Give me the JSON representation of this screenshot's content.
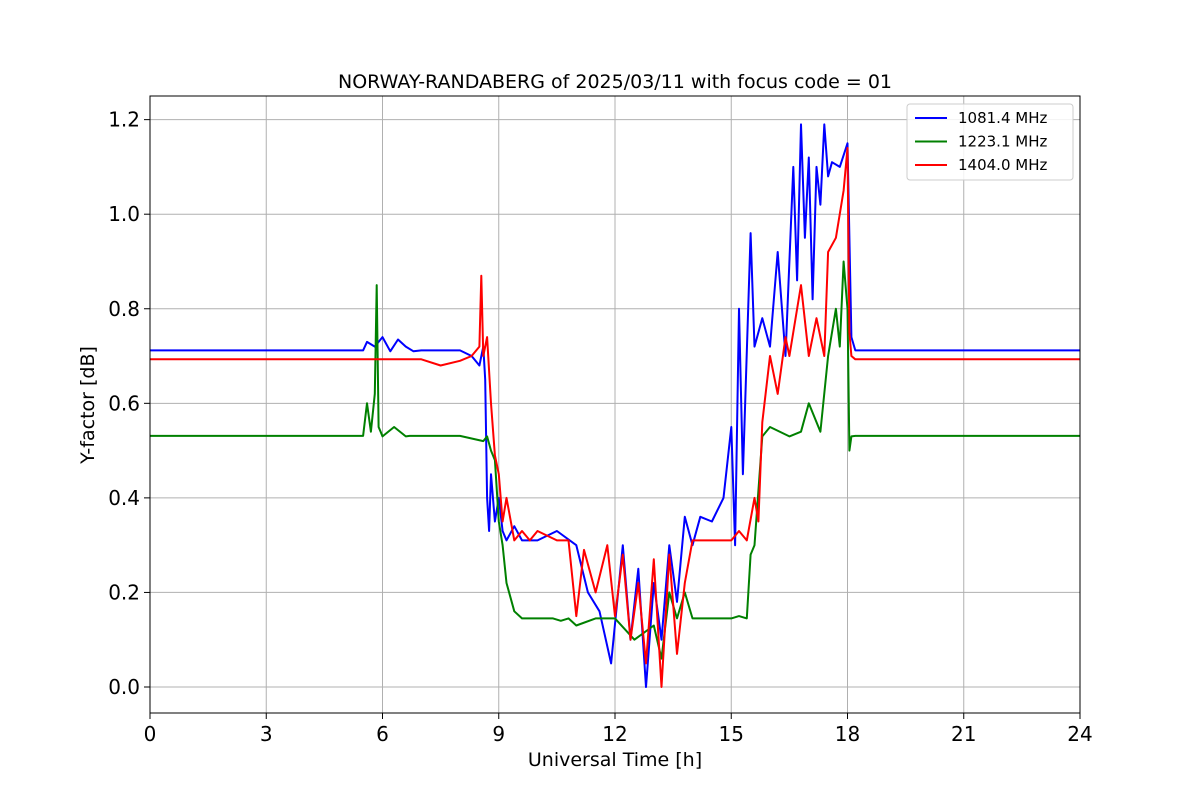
{
  "chart_data": {
    "type": "line",
    "title": "NORWAY-RANDABERG of 2025/03/11 with focus code = 01",
    "xlabel": "Universal Time [h]",
    "ylabel": "Y-factor [dB]",
    "xlim": [
      0,
      24
    ],
    "ylim": [
      -0.055,
      1.25
    ],
    "xticks": [
      0,
      3,
      6,
      9,
      12,
      15,
      18,
      21,
      24
    ],
    "yticks": [
      0.0,
      0.2,
      0.4,
      0.6,
      0.8,
      1.0,
      1.2
    ],
    "ytick_labels": [
      "0.0",
      "0.2",
      "0.4",
      "0.6",
      "0.8",
      "1.0",
      "1.2"
    ],
    "grid": true,
    "legend_position": "top-right",
    "series": [
      {
        "name": "1081.4 MHz",
        "color": "#0000ff",
        "x": [
          0,
          5.5,
          5.6,
          5.8,
          6.0,
          6.2,
          6.4,
          6.6,
          6.8,
          7.0,
          8.0,
          8.3,
          8.5,
          8.6,
          8.65,
          8.7,
          8.75,
          8.8,
          8.9,
          9.0,
          9.1,
          9.2,
          9.4,
          9.6,
          10.0,
          10.5,
          11.0,
          11.3,
          11.6,
          11.9,
          12.2,
          12.4,
          12.6,
          12.8,
          13.0,
          13.2,
          13.4,
          13.6,
          13.8,
          14.0,
          14.2,
          14.5,
          14.8,
          15.0,
          15.1,
          15.2,
          15.3,
          15.5,
          15.6,
          15.8,
          16.0,
          16.2,
          16.4,
          16.6,
          16.7,
          16.8,
          16.9,
          17.0,
          17.1,
          17.2,
          17.3,
          17.4,
          17.5,
          17.6,
          17.8,
          18.0,
          18.1,
          18.2,
          20.0,
          24
        ],
        "values": [
          0.712,
          0.712,
          0.73,
          0.72,
          0.74,
          0.71,
          0.735,
          0.72,
          0.71,
          0.712,
          0.712,
          0.7,
          0.68,
          0.72,
          0.65,
          0.4,
          0.33,
          0.45,
          0.35,
          0.4,
          0.33,
          0.31,
          0.34,
          0.31,
          0.31,
          0.33,
          0.3,
          0.2,
          0.16,
          0.05,
          0.3,
          0.1,
          0.25,
          0.0,
          0.22,
          0.1,
          0.3,
          0.18,
          0.36,
          0.3,
          0.36,
          0.35,
          0.4,
          0.55,
          0.3,
          0.8,
          0.45,
          0.96,
          0.72,
          0.78,
          0.72,
          0.92,
          0.7,
          1.1,
          0.86,
          1.19,
          0.95,
          1.12,
          0.82,
          1.1,
          1.02,
          1.19,
          1.08,
          1.11,
          1.1,
          1.15,
          0.74,
          0.712,
          0.712,
          0.712
        ]
      },
      {
        "name": "1223.1 MHz",
        "color": "#008000",
        "x": [
          0,
          5.5,
          5.6,
          5.7,
          5.8,
          5.85,
          5.9,
          5.95,
          6.0,
          6.3,
          6.6,
          6.7,
          8.0,
          8.6,
          8.7,
          8.8,
          8.9,
          9.0,
          9.1,
          9.2,
          9.4,
          9.6,
          9.8,
          10.0,
          10.4,
          10.6,
          10.8,
          11.0,
          11.5,
          12.0,
          12.5,
          13.0,
          13.2,
          13.4,
          13.6,
          13.8,
          14.0,
          14.2,
          14.5,
          15.0,
          15.2,
          15.4,
          15.5,
          15.6,
          15.8,
          16.0,
          16.5,
          16.8,
          17.0,
          17.3,
          17.5,
          17.7,
          17.8,
          17.9,
          18.0,
          18.05,
          18.1,
          18.2,
          20.0,
          24
        ],
        "values": [
          0.531,
          0.531,
          0.6,
          0.54,
          0.62,
          0.85,
          0.55,
          0.54,
          0.53,
          0.55,
          0.53,
          0.531,
          0.531,
          0.52,
          0.53,
          0.5,
          0.48,
          0.35,
          0.3,
          0.22,
          0.16,
          0.145,
          0.145,
          0.145,
          0.145,
          0.14,
          0.145,
          0.13,
          0.145,
          0.145,
          0.1,
          0.13,
          0.06,
          0.2,
          0.145,
          0.2,
          0.145,
          0.145,
          0.145,
          0.145,
          0.15,
          0.145,
          0.28,
          0.3,
          0.53,
          0.55,
          0.53,
          0.54,
          0.6,
          0.54,
          0.7,
          0.8,
          0.72,
          0.9,
          0.8,
          0.5,
          0.53,
          0.531,
          0.531,
          0.531
        ]
      },
      {
        "name": "1404.0 MHz",
        "color": "#ff0000",
        "x": [
          0,
          6.0,
          7.0,
          7.5,
          8.0,
          8.3,
          8.5,
          8.55,
          8.6,
          8.7,
          8.8,
          8.9,
          9.0,
          9.1,
          9.2,
          9.4,
          9.6,
          9.8,
          10.0,
          10.5,
          10.8,
          11.0,
          11.2,
          11.5,
          11.8,
          12.0,
          12.2,
          12.4,
          12.6,
          12.8,
          13.0,
          13.2,
          13.4,
          13.6,
          13.8,
          14.0,
          14.2,
          14.5,
          15.0,
          15.2,
          15.4,
          15.6,
          15.7,
          15.8,
          16.0,
          16.2,
          16.4,
          16.5,
          16.8,
          17.0,
          17.2,
          17.4,
          17.5,
          17.7,
          17.9,
          18.0,
          18.05,
          18.1,
          18.2,
          20.0,
          24
        ],
        "values": [
          0.693,
          0.693,
          0.693,
          0.68,
          0.69,
          0.7,
          0.72,
          0.87,
          0.7,
          0.74,
          0.6,
          0.49,
          0.45,
          0.35,
          0.4,
          0.31,
          0.33,
          0.31,
          0.33,
          0.31,
          0.31,
          0.15,
          0.29,
          0.2,
          0.3,
          0.15,
          0.28,
          0.1,
          0.22,
          0.05,
          0.27,
          0.0,
          0.28,
          0.07,
          0.22,
          0.31,
          0.31,
          0.31,
          0.31,
          0.33,
          0.31,
          0.4,
          0.35,
          0.56,
          0.7,
          0.62,
          0.74,
          0.7,
          0.85,
          0.7,
          0.78,
          0.7,
          0.92,
          0.95,
          1.05,
          1.14,
          0.75,
          0.7,
          0.693,
          0.693,
          0.693
        ]
      }
    ]
  }
}
